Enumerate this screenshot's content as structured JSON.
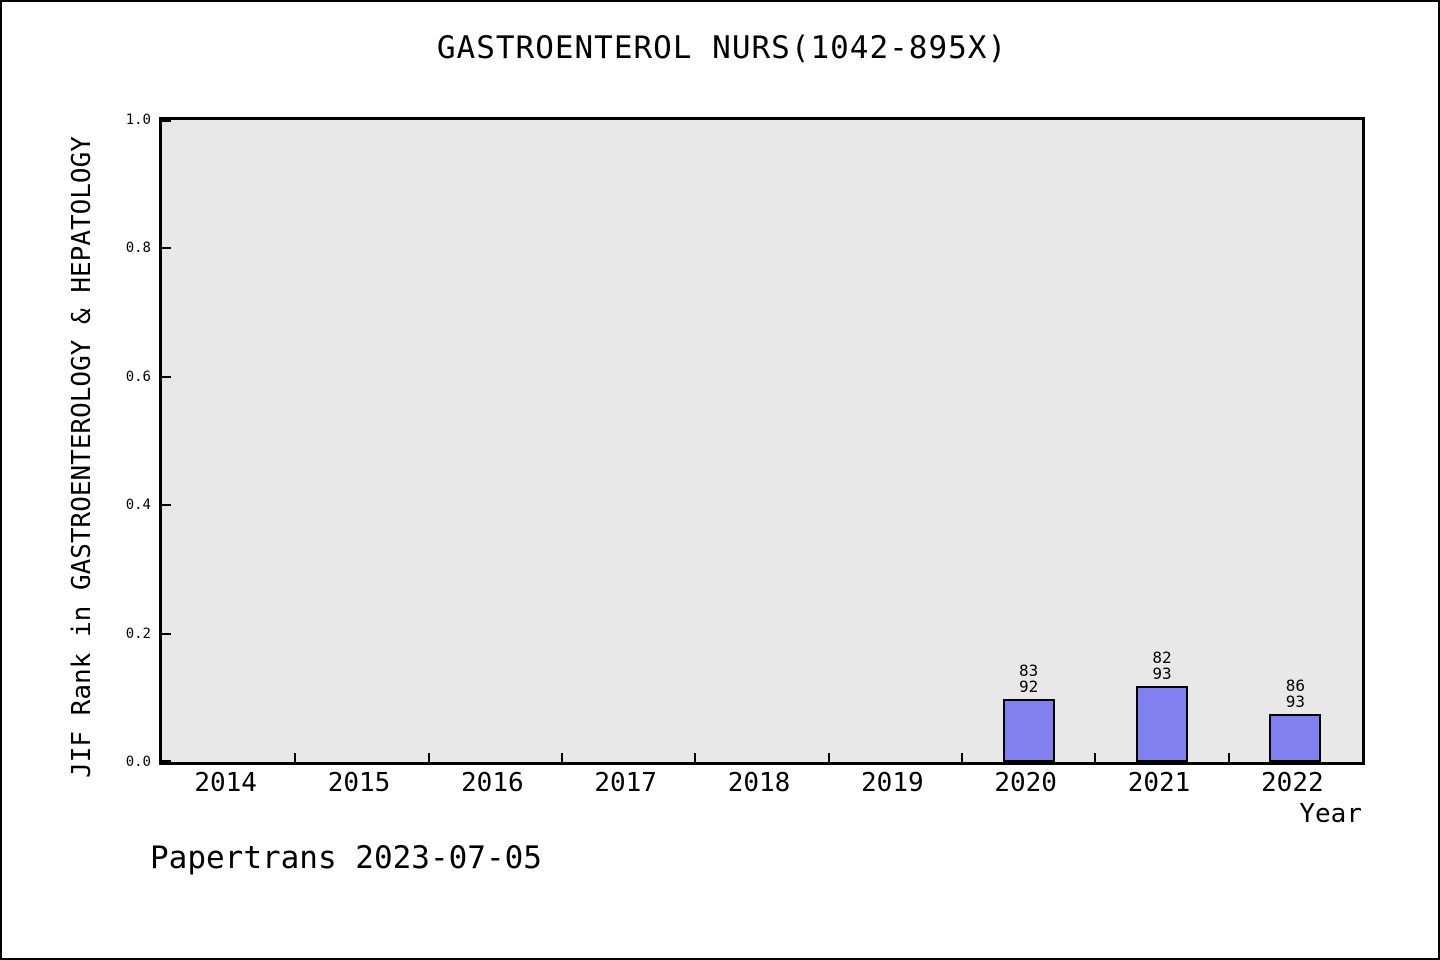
{
  "figure": {
    "border_color": "#000000",
    "background": "#ffffff"
  },
  "chart_data": {
    "type": "bar",
    "title": "GASTROENTEROL NURS(1042-895X)",
    "xlabel": "Year",
    "ylabel": "JIF Rank in GASTROENTEROLOGY & HEPATOLOGY",
    "categories": [
      "2014",
      "2015",
      "2016",
      "2017",
      "2018",
      "2019",
      "2020",
      "2021",
      "2022"
    ],
    "yticks": [
      0.0,
      0.2,
      0.4,
      0.6,
      0.8,
      1.0
    ],
    "ytick_labels": [
      "0.0",
      "0.2",
      "0.4",
      "0.6",
      "0.8",
      "1.0"
    ],
    "ylim": [
      0,
      1
    ],
    "grid": false,
    "legend": null,
    "plot_background": "#e8e8e8",
    "bar_color": "#8080f0",
    "bar_edge_color": "#000000",
    "bars": [
      {
        "category": "2020",
        "value": 0.098,
        "rank": "83",
        "total": "92"
      },
      {
        "category": "2021",
        "value": 0.118,
        "rank": "82",
        "total": "93"
      },
      {
        "category": "2022",
        "value": 0.075,
        "rank": "86",
        "total": "93"
      }
    ],
    "footer": "Papertrans 2023-07-05"
  }
}
